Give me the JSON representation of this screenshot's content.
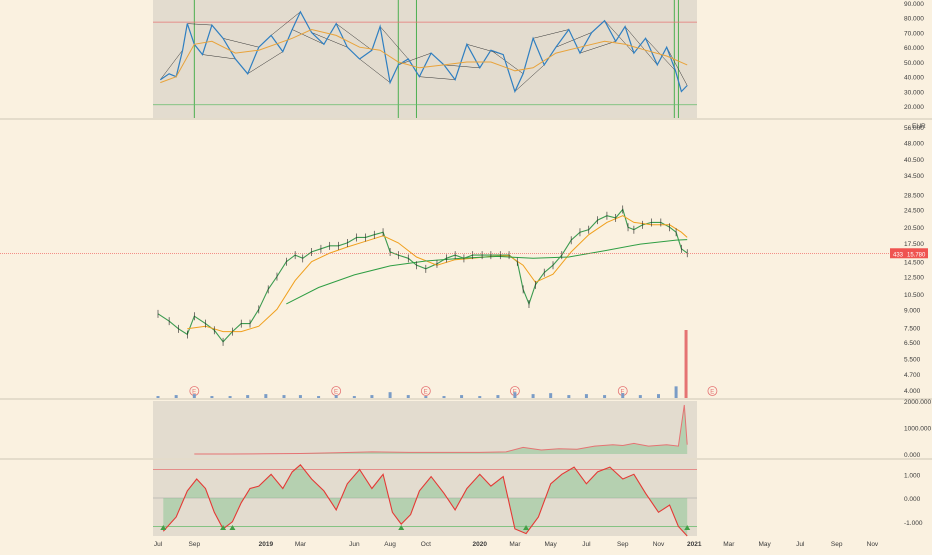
{
  "chart_data": [
    {
      "type": "line",
      "panel": "oscillator-top",
      "title": "",
      "y_ticks": [
        "90.000",
        "80.000",
        "70.000",
        "60.000",
        "50.000",
        "40.000",
        "30.000",
        "20.000"
      ],
      "ylim": [
        12,
        92
      ],
      "reference_lines": [
        77,
        21
      ],
      "vertical_markers": [
        {
          "date": "2018-09-01",
          "color": "#4caf50"
        },
        {
          "date": "2019-08-15",
          "color": "#4caf50"
        },
        {
          "date": "2019-09-15",
          "color": "#4caf50"
        },
        {
          "date": "2020-11-28",
          "color": "#4caf50"
        },
        {
          "date": "2020-12-05",
          "color": "#4caf50"
        }
      ],
      "series": [
        {
          "color": "#2f7fc1",
          "x": [
            "2018-07-05",
            "2018-07-20",
            "2018-08-01",
            "2018-08-12",
            "2018-08-20",
            "2018-09-01",
            "2018-09-15",
            "2018-10-01",
            "2018-10-20",
            "2018-11-10",
            "2018-12-01",
            "2018-12-20",
            "2019-01-10",
            "2019-01-30",
            "2019-02-15",
            "2019-03-01",
            "2019-03-20",
            "2019-04-10",
            "2019-05-01",
            "2019-05-20",
            "2019-06-10",
            "2019-07-01",
            "2019-07-15",
            "2019-08-01",
            "2019-08-15",
            "2019-09-01",
            "2019-09-20",
            "2019-10-10",
            "2019-11-01",
            "2019-11-20",
            "2019-12-10",
            "2020-01-01",
            "2020-01-20",
            "2020-02-10",
            "2020-03-01",
            "2020-03-15",
            "2020-04-01",
            "2020-04-20",
            "2020-05-10",
            "2020-06-01",
            "2020-06-20",
            "2020-07-10",
            "2020-08-01",
            "2020-08-20",
            "2020-09-05",
            "2020-09-20",
            "2020-10-10",
            "2020-10-30",
            "2020-11-15",
            "2020-11-30",
            "2020-12-10",
            "2020-12-20"
          ],
          "y": [
            38,
            42,
            40,
            58,
            76,
            62,
            55,
            75,
            66,
            52,
            42,
            60,
            68,
            57,
            72,
            84,
            70,
            62,
            76,
            60,
            52,
            58,
            74,
            36,
            48,
            52,
            40,
            56,
            48,
            38,
            62,
            46,
            58,
            55,
            30,
            42,
            66,
            48,
            60,
            72,
            56,
            70,
            78,
            64,
            74,
            56,
            66,
            48,
            60,
            44,
            30,
            34
          ]
        },
        {
          "color": "#e8a33b",
          "x": [
            "2018-07-05",
            "2018-08-01",
            "2018-09-01",
            "2018-10-01",
            "2018-11-10",
            "2018-12-20",
            "2019-02-15",
            "2019-03-20",
            "2019-05-01",
            "2019-06-10",
            "2019-07-15",
            "2019-08-15",
            "2019-09-20",
            "2019-11-01",
            "2019-12-10",
            "2020-01-20",
            "2020-03-01",
            "2020-04-01",
            "2020-05-10",
            "2020-06-20",
            "2020-08-01",
            "2020-09-05",
            "2020-10-10",
            "2020-11-15",
            "2020-12-20"
          ],
          "y": [
            36,
            40,
            62,
            64,
            56,
            58,
            66,
            72,
            68,
            60,
            58,
            50,
            46,
            48,
            50,
            50,
            44,
            46,
            56,
            60,
            64,
            62,
            58,
            54,
            48
          ]
        }
      ]
    },
    {
      "type": "line",
      "panel": "price",
      "title": "",
      "currency": "EUR",
      "y_scale": "log",
      "y_ticks": [
        "56.000",
        "48.000",
        "40.500",
        "34.500",
        "28.500",
        "24.500",
        "20.500",
        "17.500",
        "14.500",
        "12.500",
        "10.500",
        "9.000",
        "7.500",
        "6.500",
        "5.500",
        "4.700",
        "4.000"
      ],
      "ylim": [
        3.7,
        60
      ],
      "last_price_label": "15.780",
      "last_price_tag": "433",
      "earnings_markers": [
        "2018-09-01",
        "2019-05-01",
        "2019-10-01",
        "2020-03-01",
        "2020-09-01",
        "2021-02-01"
      ],
      "earnings_symbol": "E",
      "series": [
        {
          "color": "#3c9b50",
          "x": [
            "2018-07-01",
            "2018-07-20",
            "2018-08-05",
            "2018-08-20",
            "2018-09-01",
            "2018-09-20",
            "2018-10-05",
            "2018-10-20",
            "2018-11-05",
            "2018-11-20",
            "2018-12-05",
            "2018-12-20",
            "2019-01-05",
            "2019-01-20",
            "2019-02-05",
            "2019-02-20",
            "2019-03-05",
            "2019-03-20",
            "2019-04-05",
            "2019-04-20",
            "2019-05-05",
            "2019-05-20",
            "2019-06-05",
            "2019-06-20",
            "2019-07-05",
            "2019-07-20",
            "2019-08-01",
            "2019-08-15",
            "2019-09-01",
            "2019-09-15",
            "2019-10-01",
            "2019-10-20",
            "2019-11-05",
            "2019-11-20",
            "2019-12-05",
            "2019-12-20",
            "2020-01-05",
            "2020-01-20",
            "2020-02-05",
            "2020-02-20",
            "2020-03-05",
            "2020-03-15",
            "2020-03-25",
            "2020-04-05",
            "2020-04-20",
            "2020-05-05",
            "2020-05-20",
            "2020-06-05",
            "2020-06-20",
            "2020-07-05",
            "2020-07-20",
            "2020-08-05",
            "2020-08-20",
            "2020-09-01",
            "2020-09-10",
            "2020-09-20",
            "2020-10-05",
            "2020-10-20",
            "2020-11-05",
            "2020-11-20",
            "2020-12-01",
            "2020-12-10",
            "2020-12-20"
          ],
          "y": [
            8.6,
            8.0,
            7.4,
            7.0,
            8.4,
            7.8,
            7.3,
            6.5,
            7.2,
            7.8,
            7.8,
            9.0,
            11.0,
            12.5,
            14.5,
            15.5,
            15.0,
            16.0,
            16.5,
            17.0,
            17.0,
            17.5,
            18.5,
            18.5,
            19.0,
            19.5,
            16.0,
            15.5,
            15.0,
            14.0,
            13.5,
            14.2,
            15.0,
            15.5,
            15.0,
            15.5,
            15.5,
            15.5,
            15.5,
            15.5,
            14.5,
            11.0,
            9.5,
            11.5,
            13.0,
            14.0,
            15.5,
            18.0,
            19.5,
            20.0,
            22.0,
            23.0,
            22.5,
            24.5,
            20.5,
            20.0,
            21.0,
            21.5,
            21.5,
            20.5,
            19.5,
            16.5,
            15.8
          ]
        },
        {
          "color": "#f0a01e",
          "x": [
            "2018-08-20",
            "2018-09-20",
            "2018-10-20",
            "2018-11-20",
            "2018-12-20",
            "2019-01-20",
            "2019-02-20",
            "2019-03-20",
            "2019-04-20",
            "2019-05-20",
            "2019-06-20",
            "2019-07-20",
            "2019-08-15",
            "2019-09-15",
            "2019-10-20",
            "2019-11-20",
            "2019-12-20",
            "2020-01-20",
            "2020-02-20",
            "2020-03-15",
            "2020-04-05",
            "2020-05-05",
            "2020-06-05",
            "2020-07-05",
            "2020-08-05",
            "2020-09-01",
            "2020-09-20",
            "2020-10-20",
            "2020-11-20",
            "2020-12-10",
            "2020-12-20"
          ],
          "y": [
            7.4,
            7.6,
            7.2,
            7.2,
            7.6,
            9.0,
            12.0,
            14.5,
            15.8,
            16.8,
            17.8,
            18.8,
            17.5,
            15.2,
            14.0,
            14.8,
            15.0,
            15.3,
            15.4,
            14.0,
            11.8,
            12.8,
            16.0,
            19.0,
            21.5,
            23.0,
            21.5,
            21.0,
            21.0,
            19.5,
            18.5
          ]
        },
        {
          "color": "#2f9e44",
          "x": [
            "2019-02-05",
            "2019-04-01",
            "2019-06-01",
            "2019-08-01",
            "2019-10-01",
            "2019-12-01",
            "2020-02-01",
            "2020-04-01",
            "2020-06-01",
            "2020-08-01",
            "2020-10-01",
            "2020-12-01",
            "2020-12-20"
          ],
          "y": [
            9.5,
            11.2,
            12.7,
            13.9,
            14.6,
            15.0,
            15.3,
            15.0,
            15.2,
            16.2,
            17.3,
            18.0,
            18.1
          ]
        }
      ]
    },
    {
      "type": "bar",
      "panel": "volume",
      "title": "",
      "x": [
        "2018-07-01",
        "2018-08-01",
        "2018-09-01",
        "2018-10-01",
        "2018-11-01",
        "2018-12-01",
        "2019-01-01",
        "2019-02-01",
        "2019-03-01",
        "2019-04-01",
        "2019-05-01",
        "2019-06-01",
        "2019-07-01",
        "2019-08-01",
        "2019-09-01",
        "2019-10-01",
        "2019-11-01",
        "2019-12-01",
        "2020-01-01",
        "2020-02-01",
        "2020-03-01",
        "2020-04-01",
        "2020-05-01",
        "2020-06-01",
        "2020-07-01",
        "2020-08-01",
        "2020-09-01",
        "2020-10-01",
        "2020-11-01",
        "2020-12-01",
        "2020-12-18"
      ],
      "values": [
        2,
        3,
        4,
        2,
        2,
        3,
        4,
        3,
        3,
        2,
        3,
        2,
        3,
        6,
        3,
        2,
        2,
        3,
        2,
        3,
        6,
        4,
        5,
        3,
        4,
        3,
        5,
        3,
        4,
        12,
        70
      ],
      "colors": [
        "#7a9cc6",
        "#e57373"
      ]
    },
    {
      "type": "area",
      "panel": "indicator-1",
      "title": "",
      "y_ticks": [
        "2000.000",
        "1000.000",
        "0.000"
      ],
      "ylim": [
        -150,
        2000
      ],
      "x": [
        "2018-09-01",
        "2018-11-01",
        "2019-01-01",
        "2019-03-01",
        "2019-05-01",
        "2019-07-01",
        "2019-09-01",
        "2019-11-01",
        "2020-01-01",
        "2020-02-15",
        "2020-03-15",
        "2020-04-15",
        "2020-05-15",
        "2020-06-15",
        "2020-07-15",
        "2020-08-15",
        "2020-09-01",
        "2020-09-20",
        "2020-10-15",
        "2020-11-15",
        "2020-12-05",
        "2020-12-15",
        "2020-12-20"
      ],
      "values": [
        0,
        0,
        10,
        20,
        50,
        80,
        60,
        60,
        60,
        80,
        250,
        150,
        200,
        180,
        300,
        350,
        320,
        400,
        300,
        350,
        300,
        1850,
        350
      ],
      "colors": {
        "up": "#7cc08a",
        "down": "#e57373"
      }
    },
    {
      "type": "area",
      "panel": "indicator-2",
      "title": "",
      "y_ticks": [
        "1.000",
        "0.000",
        "-1.000"
      ],
      "ylim": [
        -1.6,
        1.6
      ],
      "reference_lines": [
        1.2,
        -1.2
      ],
      "x": [
        "2018-07-10",
        "2018-08-01",
        "2018-08-20",
        "2018-09-05",
        "2018-09-20",
        "2018-10-05",
        "2018-10-20",
        "2018-11-05",
        "2018-11-20",
        "2018-12-05",
        "2018-12-20",
        "2019-01-10",
        "2019-01-30",
        "2019-02-15",
        "2019-03-01",
        "2019-03-20",
        "2019-04-10",
        "2019-05-01",
        "2019-05-20",
        "2019-06-10",
        "2019-07-01",
        "2019-07-20",
        "2019-08-05",
        "2019-08-20",
        "2019-09-05",
        "2019-09-20",
        "2019-10-10",
        "2019-11-01",
        "2019-11-20",
        "2019-12-10",
        "2020-01-01",
        "2020-01-20",
        "2020-02-10",
        "2020-03-01",
        "2020-03-20",
        "2020-04-10",
        "2020-05-01",
        "2020-05-20",
        "2020-06-10",
        "2020-07-01",
        "2020-07-20",
        "2020-08-10",
        "2020-09-01",
        "2020-09-20",
        "2020-10-10",
        "2020-11-01",
        "2020-11-20",
        "2020-12-05",
        "2020-12-20"
      ],
      "values": [
        -1.4,
        -0.8,
        0.3,
        0.8,
        0.4,
        -0.6,
        -1.3,
        -1.0,
        -0.2,
        0.4,
        0.5,
        1.0,
        0.4,
        1.1,
        1.4,
        0.8,
        0.3,
        -0.5,
        0.6,
        1.2,
        0.4,
        1.0,
        -0.6,
        -1.1,
        -0.7,
        0.3,
        0.9,
        0.2,
        -0.5,
        0.4,
        1.0,
        0.5,
        0.9,
        -1.3,
        -1.5,
        -0.8,
        0.6,
        1.0,
        1.3,
        0.6,
        1.1,
        1.3,
        0.8,
        1.0,
        0.2,
        -0.6,
        -0.3,
        -1.2,
        -1.6
      ],
      "signal_markers": [
        "2018-07-10",
        "2018-10-20",
        "2018-11-05",
        "2019-08-20",
        "2020-03-20",
        "2020-12-20"
      ]
    }
  ],
  "x_axis": {
    "ticks": [
      {
        "label": "Jul",
        "date": "2018-07-01"
      },
      {
        "label": "Sep",
        "date": "2018-09-01"
      },
      {
        "label": "2019",
        "date": "2019-01-01"
      },
      {
        "label": "Mar",
        "date": "2019-03-01"
      },
      {
        "label": "Jun",
        "date": "2019-06-01"
      },
      {
        "label": "Aug",
        "date": "2019-08-01"
      },
      {
        "label": "Oct",
        "date": "2019-10-01"
      },
      {
        "label": "2020",
        "date": "2020-01-01"
      },
      {
        "label": "Mar",
        "date": "2020-03-01"
      },
      {
        "label": "May",
        "date": "2020-05-01"
      },
      {
        "label": "Jul",
        "date": "2020-07-01"
      },
      {
        "label": "Sep",
        "date": "2020-09-01"
      },
      {
        "label": "Nov",
        "date": "2020-11-01"
      },
      {
        "label": "2021",
        "date": "2021-01-01"
      },
      {
        "label": "Mar",
        "date": "2021-03-01"
      },
      {
        "label": "May",
        "date": "2021-05-01"
      },
      {
        "label": "Jul",
        "date": "2021-07-01"
      },
      {
        "label": "Sep",
        "date": "2021-09-01"
      },
      {
        "label": "Nov",
        "date": "2021-11-01"
      }
    ]
  },
  "colors": {
    "background": "#faf1e0",
    "panel_shade": "#e3dccf",
    "axis_text": "#3a3a3a",
    "divider": "#cfc6b6",
    "price_line_marker": "#ef5350"
  }
}
